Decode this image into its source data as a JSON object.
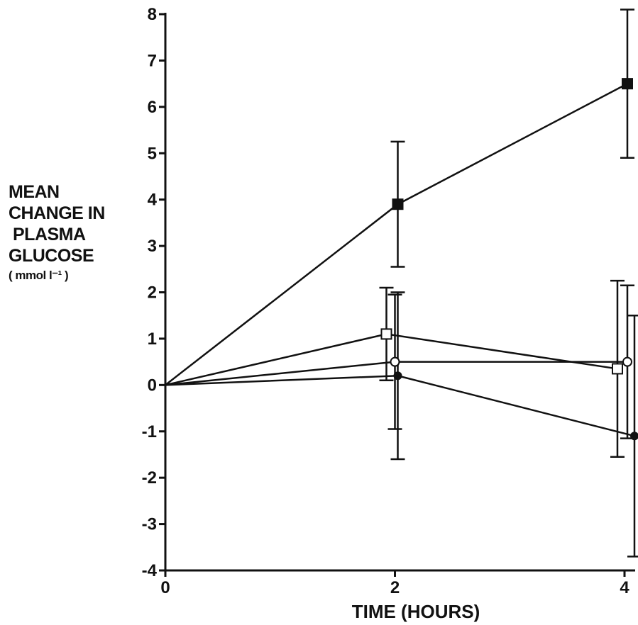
{
  "chart_data": {
    "type": "line",
    "xlabel": "TIME (HOURS)",
    "ylabel_lines": [
      "MEAN",
      "CHANGE IN",
      "PLASMA",
      "GLUCOSE"
    ],
    "ylabel_units": "( mmol l⁻¹ )",
    "xlim": [
      0,
      4
    ],
    "ylim": [
      -4,
      8
    ],
    "x_ticks": [
      0,
      2,
      4
    ],
    "y_ticks": [
      -4,
      -3,
      -2,
      -1,
      0,
      1,
      2,
      3,
      4,
      5,
      6,
      7,
      8
    ],
    "x_tick_labels": [
      "0",
      "2",
      "4"
    ],
    "y_tick_labels": [
      "-4",
      "-3",
      "-2",
      "-1",
      "0",
      "1",
      "2",
      "3",
      "4",
      "5",
      "6",
      "7",
      "8"
    ],
    "grid": false,
    "series": [
      {
        "marker": "filled-square",
        "x": [
          0,
          2,
          4
        ],
        "y": [
          0,
          3.9,
          6.5
        ],
        "error": [
          null,
          1.35,
          1.6
        ]
      },
      {
        "marker": "open-square",
        "x": [
          0,
          2,
          4
        ],
        "y": [
          0,
          1.1,
          0.35
        ],
        "error": [
          null,
          1.0,
          1.9
        ]
      },
      {
        "marker": "open-circle",
        "x": [
          0,
          2,
          4
        ],
        "y": [
          0,
          0.5,
          0.5
        ],
        "error": [
          null,
          1.45,
          1.65
        ]
      },
      {
        "marker": "filled-circle",
        "x": [
          0,
          2,
          4
        ],
        "y": [
          0,
          0.2,
          -1.1
        ],
        "error": [
          null,
          1.8,
          2.6
        ]
      }
    ]
  }
}
